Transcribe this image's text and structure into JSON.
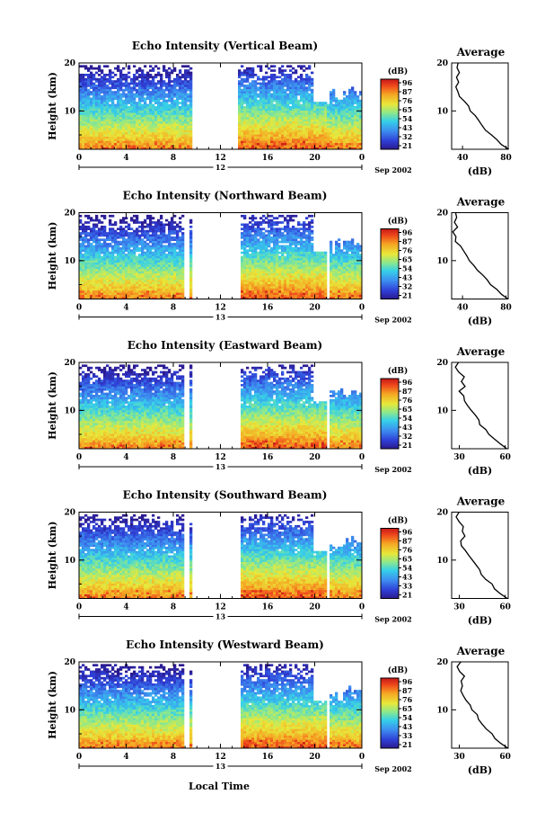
{
  "figure": {
    "xlabel": "Local Time",
    "date_label": "Sep 2002"
  },
  "chart_data": [
    {
      "type": "heatmap",
      "title": "Echo Intensity (Vertical Beam)",
      "ylabel": "Height (km)",
      "ylim": [
        2,
        20
      ],
      "y_ticks": [
        10,
        20
      ],
      "x_ticks": [
        "0",
        "4",
        "8",
        "12",
        "16",
        "20",
        "0"
      ],
      "day_label": "12",
      "colorbar_unit": "(dB)",
      "colorbar_ticks": [
        "96",
        "87",
        "76",
        "65",
        "54",
        "43",
        "32",
        "21"
      ],
      "data_gaps_hours": [
        [
          9.6,
          13.5
        ]
      ],
      "cut_height_km": {
        "20": 12,
        "22": 12
      },
      "average": {
        "title": "Average",
        "xlabel": "(dB)",
        "x_ticks": [
          "40",
          "80"
        ],
        "xlim": [
          30,
          82
        ],
        "y_ticks": [
          10,
          20
        ],
        "ylim": [
          2,
          20
        ],
        "profile": {
          "height": [
            2,
            3,
            4,
            5,
            6,
            7,
            8,
            9,
            10,
            11,
            12,
            13,
            14,
            15,
            16,
            17,
            18,
            19,
            20
          ],
          "db": [
            82,
            76,
            72,
            66,
            62,
            58,
            54,
            51,
            48,
            45,
            42,
            38,
            35,
            33,
            36,
            34,
            38,
            35,
            36
          ]
        }
      }
    },
    {
      "type": "heatmap",
      "title": "Echo Intensity (Northward Beam)",
      "ylabel": "Height (km)",
      "ylim": [
        2,
        20
      ],
      "y_ticks": [
        10,
        20
      ],
      "x_ticks": [
        "0",
        "4",
        "8",
        "12",
        "16",
        "20",
        "0"
      ],
      "day_label": "13",
      "colorbar_unit": "(dB)",
      "colorbar_ticks": [
        "96",
        "87",
        "76",
        "65",
        "54",
        "43",
        "32",
        "21"
      ],
      "data_gaps_hours": [
        [
          9.0,
          9.3
        ],
        [
          9.6,
          13.6
        ],
        [
          21.0,
          21.3
        ]
      ],
      "average": {
        "title": "Average",
        "xlabel": "(dB)",
        "x_ticks": [
          "40",
          "80"
        ],
        "xlim": [
          30,
          82
        ],
        "y_ticks": [
          10,
          20
        ],
        "ylim": [
          2,
          20
        ],
        "profile": {
          "height": [
            2,
            3,
            4,
            5,
            6,
            7,
            8,
            9,
            10,
            11,
            12,
            13,
            14,
            15,
            16,
            17,
            18,
            19,
            20
          ],
          "db": [
            82,
            76,
            72,
            66,
            62,
            58,
            54,
            50,
            47,
            44,
            41,
            38,
            34,
            35,
            32,
            35,
            32,
            34,
            33
          ]
        }
      }
    },
    {
      "type": "heatmap",
      "title": "Echo Intensity (Eastward Beam)",
      "ylabel": "Height (km)",
      "ylim": [
        2,
        20
      ],
      "y_ticks": [
        10,
        20
      ],
      "x_ticks": [
        "0",
        "4",
        "8",
        "12",
        "16",
        "20",
        "0"
      ],
      "day_label": "13",
      "colorbar_unit": "(dB)",
      "colorbar_ticks": [
        "96",
        "87",
        "76",
        "65",
        "54",
        "43",
        "32",
        "21"
      ],
      "data_gaps_hours": [
        [
          9.0,
          9.3
        ],
        [
          9.6,
          13.6
        ],
        [
          21.0,
          21.3
        ]
      ],
      "average": {
        "title": "Average",
        "xlabel": "(dB)",
        "x_ticks": [
          "30",
          "60"
        ],
        "xlim": [
          25,
          62
        ],
        "y_ticks": [
          10,
          20
        ],
        "ylim": [
          2,
          20
        ],
        "profile": {
          "height": [
            2,
            3,
            4,
            5,
            6,
            7,
            8,
            9,
            10,
            11,
            12,
            13,
            14,
            15,
            16,
            17,
            18,
            19,
            20
          ],
          "db": [
            61,
            57,
            53,
            50,
            47,
            44,
            42,
            40,
            38,
            36,
            34,
            32,
            30,
            33,
            31,
            34,
            30,
            28,
            29
          ]
        }
      }
    },
    {
      "type": "heatmap",
      "title": "Echo Intensity (Southward Beam)",
      "ylabel": "Height (km)",
      "ylim": [
        2,
        20
      ],
      "y_ticks": [
        10,
        20
      ],
      "x_ticks": [
        "0",
        "4",
        "8",
        "12",
        "16",
        "20",
        "0"
      ],
      "day_label": "13",
      "colorbar_unit": "(dB)",
      "colorbar_ticks": [
        "96",
        "87",
        "76",
        "65",
        "54",
        "43",
        "33",
        "21"
      ],
      "data_gaps_hours": [
        [
          9.0,
          9.3
        ],
        [
          9.6,
          13.6
        ],
        [
          21.0,
          21.3
        ]
      ],
      "average": {
        "title": "Average",
        "xlabel": "(dB)",
        "x_ticks": [
          "30",
          "60"
        ],
        "xlim": [
          25,
          62
        ],
        "y_ticks": [
          10,
          20
        ],
        "ylim": [
          2,
          20
        ],
        "profile": {
          "height": [
            2,
            3,
            4,
            5,
            6,
            7,
            8,
            9,
            10,
            11,
            12,
            13,
            14,
            15,
            16,
            17,
            18,
            19,
            20
          ],
          "db": [
            61,
            57,
            54,
            51,
            48,
            45,
            43,
            41,
            38,
            36,
            34,
            32,
            30,
            33,
            31,
            33,
            29,
            28,
            30
          ]
        }
      }
    },
    {
      "type": "heatmap",
      "title": "Echo Intensity (Westward Beam)",
      "ylabel": "Height (km)",
      "ylim": [
        2,
        20
      ],
      "y_ticks": [
        10,
        20
      ],
      "x_ticks": [
        "0",
        "4",
        "8",
        "12",
        "16",
        "20",
        "0"
      ],
      "day_label": "13",
      "colorbar_unit": "(dB)",
      "colorbar_ticks": [
        "96",
        "87",
        "76",
        "65",
        "54",
        "43",
        "33",
        "21"
      ],
      "data_gaps_hours": [
        [
          9.0,
          9.3
        ],
        [
          9.6,
          13.6
        ],
        [
          21.0,
          21.3
        ]
      ],
      "average": {
        "title": "Average",
        "xlabel": "(dB)",
        "x_ticks": [
          "30",
          "60"
        ],
        "xlim": [
          25,
          62
        ],
        "y_ticks": [
          10,
          20
        ],
        "ylim": [
          2,
          20
        ],
        "profile": {
          "height": [
            2,
            3,
            4,
            5,
            6,
            7,
            8,
            9,
            10,
            11,
            12,
            13,
            14,
            15,
            16,
            17,
            18,
            19,
            20
          ],
          "db": [
            61,
            58,
            54,
            51,
            48,
            45,
            43,
            41,
            39,
            37,
            34,
            32,
            30,
            33,
            31,
            34,
            30,
            29,
            31
          ]
        }
      }
    }
  ]
}
